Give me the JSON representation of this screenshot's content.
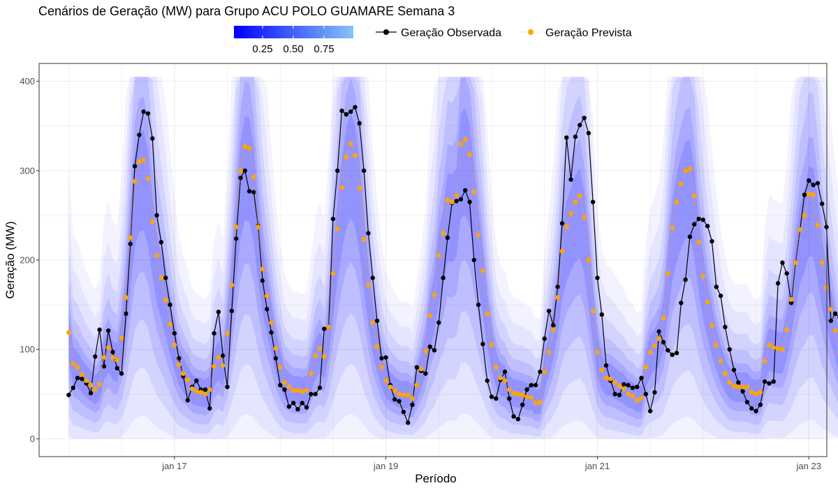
{
  "chart_data": {
    "type": "line",
    "title": "Cenários de Geração (MW) para Grupo ACU POLO GUAMARE Semana 3",
    "xlabel": "Período",
    "ylabel": "Geração (MW)",
    "ylim": [
      -20,
      420
    ],
    "y_ticks": [
      0,
      100,
      200,
      300,
      400
    ],
    "x_range_days": [
      15.72,
      23.17
    ],
    "x_ticks": [
      {
        "label": "jan 17",
        "day": 17
      },
      {
        "label": "jan 19",
        "day": 19
      },
      {
        "label": "jan 21",
        "day": 21
      },
      {
        "label": "jan 23",
        "day": 23
      }
    ],
    "grid": true,
    "colorbar": {
      "ticks": [
        "0.25",
        "0.50",
        "0.75"
      ],
      "color_low": "#0000ff",
      "color_high": "#87c3f5"
    },
    "legend": {
      "placement": "top",
      "observed_label": "Geração Observada",
      "forecast_label": "Geração Prevista"
    },
    "scenario_fan": {
      "color": "#3b3bff",
      "upper_cap": 405,
      "lower_floor": 0
    },
    "series": [
      {
        "name": "Geração Observada",
        "color": "#000000",
        "start_day": 16.0,
        "step_hours": 1,
        "values": [
          49,
          57,
          68,
          67,
          62,
          51,
          92,
          122,
          81,
          121,
          97,
          79,
          73,
          140,
          218,
          305,
          340,
          366,
          364,
          336,
          250,
          220,
          180,
          150,
          118,
          90,
          70,
          43,
          58,
          65,
          55,
          55,
          34,
          118,
          142,
          93,
          58,
          143,
          224,
          292,
          300,
          277,
          276,
          238,
          177,
          145,
          119,
          90,
          60,
          55,
          36,
          40,
          33,
          40,
          35,
          50,
          50,
          57,
          123,
          125,
          246,
          300,
          367,
          363,
          366,
          371,
          353,
          300,
          230,
          180,
          132,
          90,
          91,
          60,
          44,
          42,
          30,
          18,
          38,
          80,
          76,
          73,
          103,
          99,
          130,
          180,
          225,
          264,
          266,
          268,
          278,
          265,
          200,
          150,
          106,
          65,
          47,
          45,
          66,
          75,
          45,
          25,
          22,
          38,
          55,
          60,
          60,
          75,
          112,
          143,
          127,
          170,
          241,
          337,
          290,
          338,
          351,
          359,
          342,
          265,
          180,
          139,
          82,
          65,
          50,
          49,
          61,
          60,
          57,
          58,
          68,
          50,
          31,
          52,
          120,
          108,
          99,
          94,
          96,
          152,
          178,
          226,
          240,
          246,
          245,
          238,
          221,
          170,
          160,
          125,
          100,
          77,
          63,
          53,
          41,
          34,
          31,
          38,
          64,
          62,
          64,
          174,
          197,
          185,
          152,
          197,
          234,
          273,
          289,
          284,
          286,
          263,
          237,
          132,
          140,
          136,
          129
        ]
      },
      {
        "name": "Geração Prevista",
        "color": "#ffa500",
        "start_day": 16.0,
        "step_hours": 1,
        "values": [
          119,
          84,
          80,
          72,
          65,
          60,
          55,
          61,
          91,
          102,
          91,
          88,
          113,
          158,
          225,
          288,
          310,
          312,
          291,
          243,
          205,
          180,
          155,
          128,
          105,
          83,
          73,
          66,
          56,
          53,
          52,
          50,
          55,
          81,
          91,
          82,
          118,
          172,
          237,
          300,
          327,
          325,
          293,
          237,
          190,
          160,
          130,
          101,
          80,
          63,
          58,
          54,
          54,
          53,
          54,
          73,
          93,
          101,
          92,
          125,
          185,
          235,
          281,
          315,
          330,
          317,
          280,
          223,
          172,
          130,
          103,
          80,
          65,
          58,
          54,
          50,
          49,
          49,
          45,
          60,
          78,
          98,
          138,
          161,
          205,
          230,
          267,
          265,
          272,
          330,
          335,
          318,
          276,
          228,
          188,
          140,
          105,
          80,
          68,
          65,
          55,
          51,
          50,
          49,
          47,
          46,
          40,
          41,
          75,
          97,
          122,
          158,
          210,
          237,
          252,
          265,
          272,
          248,
          200,
          143,
          97,
          77,
          68,
          67,
          63,
          59,
          56,
          50,
          48,
          43,
          45,
          80,
          97,
          104,
          112,
          135,
          185,
          236,
          265,
          285,
          300,
          302,
          272,
          220,
          182,
          153,
          127,
          105,
          87,
          73,
          63,
          59,
          58,
          58,
          58,
          52,
          50,
          52,
          87,
          105,
          102,
          101,
          100,
          122,
          156,
          197,
          234,
          250,
          274,
          273,
          239,
          197,
          169,
          145,
          121,
          97
        ]
      }
    ]
  }
}
